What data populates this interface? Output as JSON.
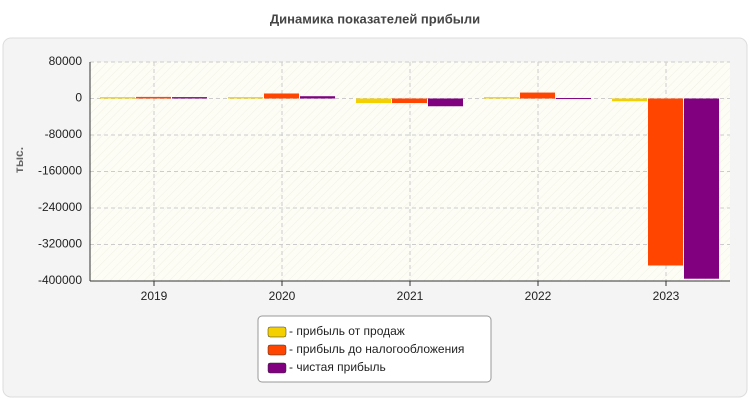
{
  "chart_data": {
    "type": "bar",
    "title": "Динамика показателей прибыли",
    "y_label": "тыс.",
    "categories": [
      "2019",
      "2020",
      "2021",
      "2022",
      "2023"
    ],
    "series": [
      {
        "name": "- прибыль от продаж",
        "color": "#f5d000",
        "values": [
          3000,
          3000,
          -10000,
          3000,
          -6000
        ]
      },
      {
        "name": "- прибыль до налогообложения",
        "color": "#ff4500",
        "values": [
          3500,
          11000,
          -10000,
          13000,
          -366000
        ]
      },
      {
        "name": "- чистая прибыль",
        "color": "#800080",
        "values": [
          3000,
          5000,
          -17000,
          1000,
          -395000
        ]
      }
    ],
    "ylim": [
      -400000,
      80000
    ],
    "yticks": [
      80000,
      0,
      -80000,
      -160000,
      -240000,
      -320000,
      -400000
    ],
    "grid": true
  }
}
